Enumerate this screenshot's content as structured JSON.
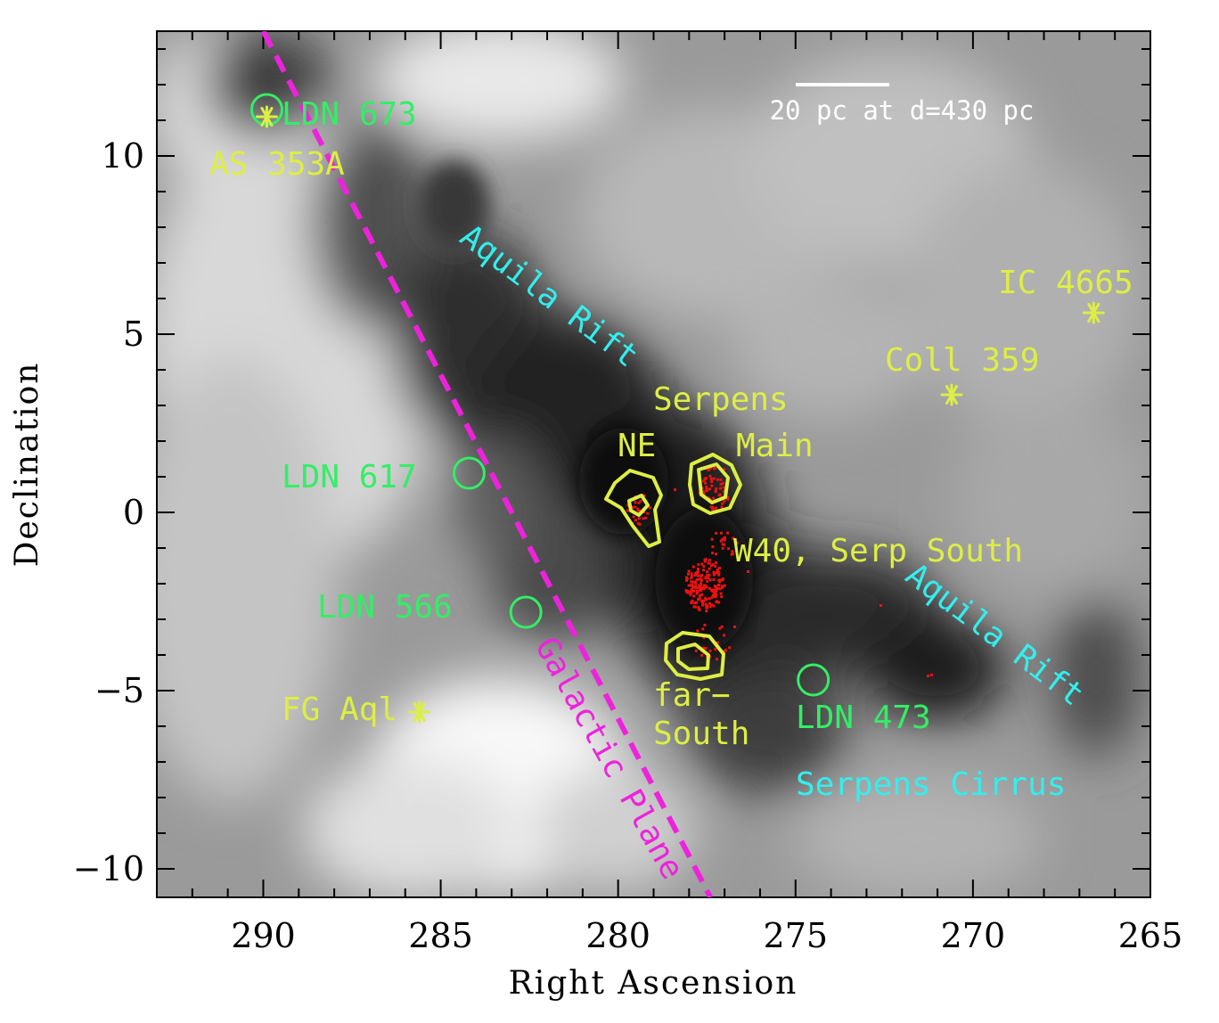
{
  "axes": {
    "xlabel": "Right Ascension",
    "ylabel": "Declination",
    "x_range": [
      293,
      265
    ],
    "y_range": [
      -10.8,
      13.5
    ],
    "x_ticks": [
      {
        "value": 290,
        "label": "290"
      },
      {
        "value": 285,
        "label": "285"
      },
      {
        "value": 280,
        "label": "280"
      },
      {
        "value": 275,
        "label": "275"
      },
      {
        "value": 270,
        "label": "270"
      },
      {
        "value": 265,
        "label": "265"
      }
    ],
    "y_ticks": [
      {
        "value": 10,
        "label": "10"
      },
      {
        "value": 5,
        "label": "5"
      },
      {
        "value": 0,
        "label": "0"
      },
      {
        "value": -5,
        "label": "−5"
      },
      {
        "value": -10,
        "label": "−10"
      }
    ]
  },
  "scale_bar": {
    "label": "20 pc at d=430 pc"
  },
  "colors": {
    "green": "#33ee66",
    "yellow": "#ddee44",
    "cyan": "#33eeee",
    "magenta": "#ee22dd",
    "red": "#ee1111",
    "white": "#ffffff"
  },
  "galactic_plane": {
    "label": "Galactic Plane",
    "from": [
      290.0,
      13.5
    ],
    "to": [
      277.4,
      -10.8
    ]
  },
  "dark_clouds": [
    {
      "name": "LDN 673",
      "ra": 289.9,
      "dec": 11.3
    },
    {
      "name": "LDN 617",
      "ra": 284.2,
      "dec": 1.1
    },
    {
      "name": "LDN 566",
      "ra": 282.6,
      "dec": -2.8
    },
    {
      "name": "LDN 473",
      "ra": 274.5,
      "dec": -4.7
    }
  ],
  "clusters": [
    {
      "name": "AS 353A",
      "ra": 289.9,
      "dec": 11.1
    },
    {
      "name": "IC 4665",
      "ra": 266.6,
      "dec": 5.6
    },
    {
      "name": "Coll 359",
      "ra": 270.6,
      "dec": 3.3
    },
    {
      "name": "FG Aql",
      "ra": 285.6,
      "dec": -5.6
    }
  ],
  "regions": {
    "serpens": "Serpens",
    "ne": "NE",
    "main": "Main",
    "w40": "W40, Serp South",
    "far": "far−",
    "south": "South"
  },
  "features": {
    "aquila_rift_1": "Aquila Rift",
    "aquila_rift_2": "Aquila Rift",
    "serpens_cirrus": "Serpens Cirrus"
  }
}
